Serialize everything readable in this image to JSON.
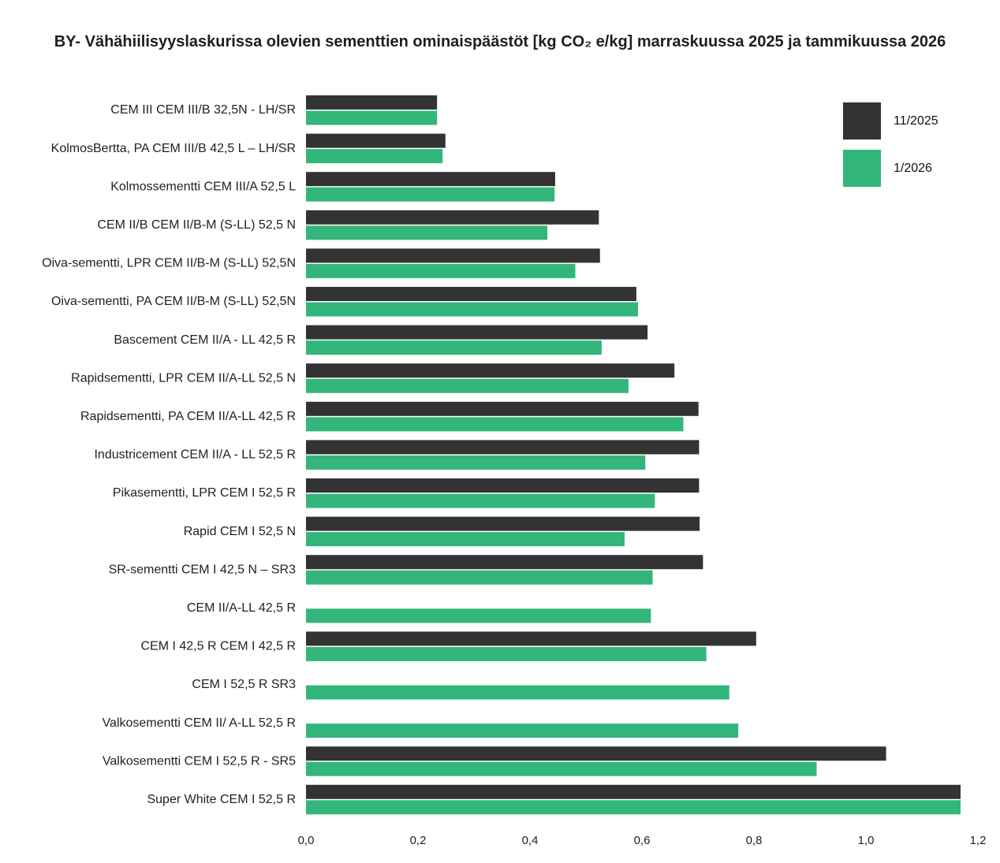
{
  "chart_data": {
    "type": "bar",
    "orientation": "horizontal",
    "title": "BY- Vähähiilisyyslaskurissa olevien sementtien ominaispäästöt  [kg CO₂ e/kg] marraskuussa 2025 ja tammikuussa 2026",
    "xlabel": "",
    "ylabel": "",
    "xlim": [
      0,
      1.2
    ],
    "xticks": [
      "0,0",
      "0,2",
      "0,4",
      "0,6",
      "0,8",
      "1,0",
      "1,2"
    ],
    "grid": false,
    "legend_position": "top-right",
    "categories": [
      "CEM III CEM III/B 32,5N - LH/SR",
      "KolmosBertta, PA CEM III/B 42,5 L – LH/SR",
      "Kolmossementti CEM III/A 52,5 L",
      "CEM II/B CEM II/B-M (S-LL) 52,5 N",
      "Oiva-sementti, LPR CEM II/B-M (S-LL) 52,5N",
      "Oiva-sementti, PA CEM II/B-M (S-LL) 52,5N",
      "Bascement CEM II/A - LL 42,5 R",
      "Rapidsementti, LPR CEM II/A-LL 52,5 N",
      "Rapidsementti, PA CEM II/A-LL 42,5 R",
      "Industricement CEM II/A - LL 52,5 R",
      "Pikasementti, LPR CEM I 52,5 R",
      "Rapid CEM I 52,5 N",
      "SR-sementti CEM I 42,5 N – SR3",
      "CEM II/A-LL 42,5 R",
      "CEM I 42,5 R CEM I 42,5 R",
      "CEM I 52,5 R SR3",
      "Valkosementti CEM II/ A-LL  52,5 R",
      "Valkosementti CEM I 52,5 R - SR5",
      "Super White CEM I 52,5 R"
    ],
    "series": [
      {
        "name": "11/2025",
        "color": "#333333",
        "values": [
          0.234,
          0.249,
          0.445,
          0.523,
          0.525,
          0.59,
          0.61,
          0.658,
          0.701,
          0.702,
          0.702,
          0.703,
          0.709,
          null,
          0.804,
          null,
          null,
          1.036,
          1.169
        ]
      },
      {
        "name": "1/2026",
        "color": "#33b679",
        "values": [
          0.234,
          0.244,
          0.444,
          0.431,
          0.481,
          0.593,
          0.528,
          0.576,
          0.674,
          0.606,
          0.623,
          0.569,
          0.619,
          0.616,
          0.715,
          0.756,
          0.772,
          0.912,
          1.169
        ]
      }
    ]
  }
}
